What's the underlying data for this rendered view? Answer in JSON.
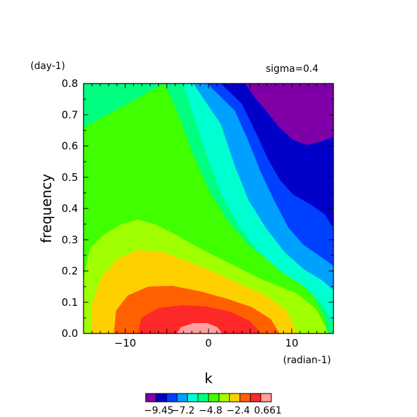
{
  "chart_data": {
    "type": "heatmap",
    "subtitle": "sigma=0.4",
    "xlabel": "k",
    "ylabel": "frequency",
    "x_unit_label": "(radian-1)",
    "y_unit_label": "(day-1)",
    "xlim": [
      -15,
      15
    ],
    "ylim": [
      0,
      0.8
    ],
    "x_ticks": [
      {
        "value": -10,
        "label": "−10"
      },
      {
        "value": 0,
        "label": "0"
      },
      {
        "value": 10,
        "label": "10"
      }
    ],
    "y_ticks": [
      {
        "value": 0.0,
        "label": "0.0"
      },
      {
        "value": 0.1,
        "label": "0.1"
      },
      {
        "value": 0.2,
        "label": "0.2"
      },
      {
        "value": 0.3,
        "label": "0.3"
      },
      {
        "value": 0.4,
        "label": "0.4"
      },
      {
        "value": 0.5,
        "label": "0.5"
      },
      {
        "value": 0.6,
        "label": "0.6"
      },
      {
        "value": 0.7,
        "label": "0.7"
      },
      {
        "value": 0.8,
        "label": "0.8"
      }
    ],
    "colorbar": {
      "colors": [
        "#8000a8",
        "#0000c8",
        "#0040ff",
        "#00a0ff",
        "#00ffd0",
        "#00ff80",
        "#40ff00",
        "#a0ff00",
        "#ffd000",
        "#ff6000",
        "#ff2828",
        "#ffa0a0"
      ],
      "labels": [
        "−9.45",
        "−7.2",
        "−4.8",
        "−2.4",
        "0.661"
      ]
    },
    "grid": false
  }
}
